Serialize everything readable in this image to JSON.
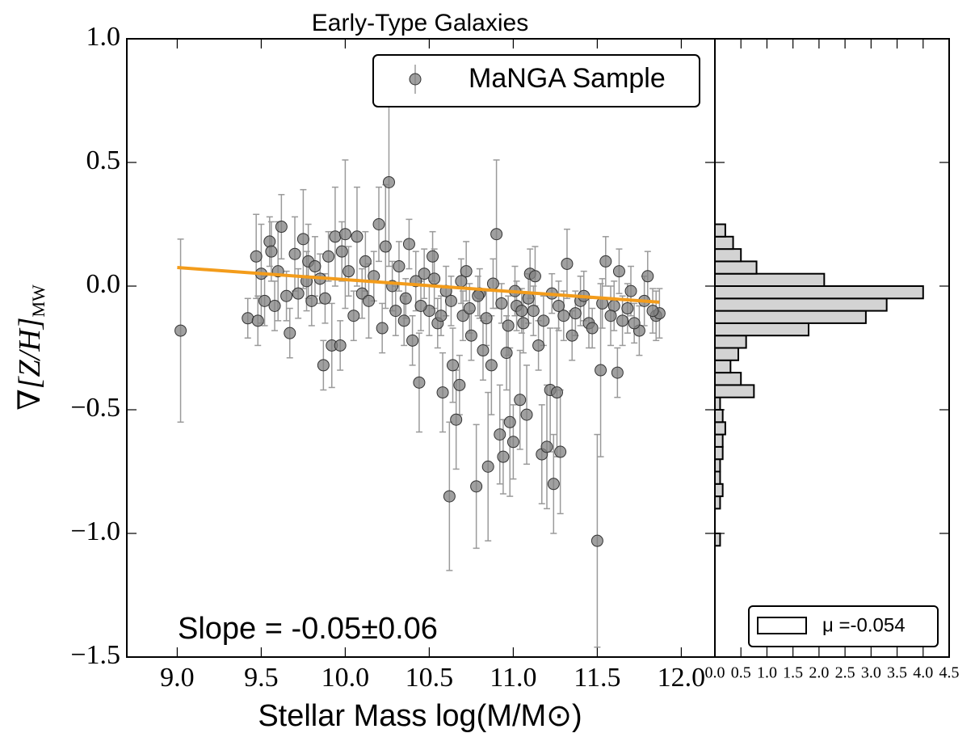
{
  "chart_data": [
    {
      "type": "scatter",
      "title": "Early-Type Galaxies",
      "xlabel": "Stellar Mass log(M/M⊙)",
      "ylabel": "∇[Z/H]",
      "ylabel_sub": "MW",
      "annotation": "Slope = -0.05±0.06",
      "annotation_color": "#e8121a",
      "xlim": [
        8.7,
        12.2
      ],
      "xticks": [
        {
          "value": 9,
          "label": "9.0"
        },
        9.5,
        {
          "value": 10,
          "label": "10.0"
        },
        10.5,
        {
          "value": 11,
          "label": "11.0"
        },
        11.5,
        {
          "value": 12,
          "label": "12.0"
        }
      ],
      "ylim": [
        -1.5,
        1.0
      ],
      "yticks": [
        {
          "value": -1.5,
          "label": "−1.5"
        },
        {
          "value": -1,
          "label": "−1.0"
        },
        {
          "value": -0.5,
          "label": "−0.5"
        },
        {
          "value": 0,
          "label": "0.0"
        },
        {
          "value": 0.5,
          "label": "0.5"
        },
        {
          "value": 1,
          "label": "1.0"
        }
      ],
      "legend": "upper right",
      "fit": {
        "x": [
          9.0,
          11.87
        ],
        "y": [
          0.075,
          -0.065
        ],
        "color": "#f39c1b"
      },
      "series": [
        {
          "name": "MaNGA Sample",
          "color": "#808080",
          "x": [
            9.02,
            9.42,
            9.47,
            9.48,
            9.5,
            9.52,
            9.55,
            9.56,
            9.58,
            9.6,
            9.62,
            9.65,
            9.67,
            9.7,
            9.72,
            9.75,
            9.77,
            9.78,
            9.8,
            9.82,
            9.85,
            9.87,
            9.88,
            9.9,
            9.92,
            9.94,
            9.97,
            9.98,
            10.0,
            10.02,
            10.05,
            10.07,
            10.1,
            10.12,
            10.14,
            10.17,
            10.2,
            10.22,
            10.24,
            10.26,
            10.28,
            10.3,
            10.32,
            10.35,
            10.38,
            10.4,
            10.42,
            10.44,
            10.47,
            10.5,
            10.52,
            10.55,
            10.58,
            10.6,
            10.62,
            10.64,
            10.66,
            10.68,
            10.7,
            10.72,
            10.75,
            10.78,
            10.8,
            10.82,
            10.85,
            10.87,
            10.9,
            10.92,
            10.94,
            10.96,
            10.98,
            11.0,
            11.02,
            11.04,
            11.06,
            11.08,
            11.1,
            11.12,
            11.15,
            11.17,
            11.2,
            11.22,
            11.24,
            11.26,
            11.28,
            11.3,
            11.35,
            11.4,
            11.45,
            11.5,
            11.52,
            11.55,
            11.6,
            11.62,
            11.65,
            11.7,
            11.75,
            11.8,
            11.85,
            11.87,
            10.36,
            10.45,
            10.53,
            10.57,
            10.63,
            10.69,
            10.74,
            10.79,
            10.84,
            10.88,
            10.93,
            10.97,
            11.01,
            11.05,
            11.09,
            11.13,
            11.18,
            11.23,
            11.27,
            11.32,
            11.37,
            11.42,
            11.47,
            11.53,
            11.58,
            11.63,
            11.68,
            11.72,
            11.78,
            11.83
          ],
          "values": [
            -0.18,
            -0.13,
            0.12,
            -0.14,
            0.05,
            -0.06,
            0.18,
            0.14,
            -0.08,
            0.06,
            0.24,
            -0.04,
            -0.19,
            0.13,
            -0.03,
            0.19,
            0.02,
            0.1,
            -0.06,
            0.08,
            0.03,
            -0.32,
            -0.05,
            0.12,
            -0.24,
            0.2,
            -0.24,
            0.14,
            0.21,
            0.06,
            -0.12,
            0.2,
            -0.03,
            0.1,
            -0.06,
            0.04,
            0.25,
            -0.17,
            0.16,
            0.42,
            0.0,
            -0.1,
            0.08,
            -0.14,
            0.17,
            -0.22,
            0.02,
            -0.39,
            0.05,
            -0.1,
            0.12,
            -0.15,
            -0.43,
            -0.02,
            -0.85,
            -0.32,
            -0.54,
            -0.4,
            -0.12,
            0.06,
            -0.2,
            -0.81,
            -0.03,
            -0.26,
            -0.73,
            -0.32,
            0.21,
            -0.6,
            -0.69,
            -0.27,
            -0.55,
            -0.63,
            -0.08,
            -0.46,
            -0.15,
            -0.52,
            0.05,
            -0.1,
            -0.24,
            -0.68,
            -0.65,
            -0.42,
            -0.8,
            -0.43,
            -0.67,
            -0.12,
            -0.2,
            -0.06,
            -0.15,
            -1.03,
            -0.34,
            0.1,
            -0.08,
            -0.35,
            -0.14,
            -0.02,
            -0.18,
            0.04,
            -0.12,
            -0.11,
            -0.05,
            -0.08,
            0.03,
            -0.12,
            -0.06,
            0.02,
            -0.09,
            -0.04,
            -0.13,
            0.01,
            -0.07,
            -0.16,
            -0.02,
            -0.1,
            -0.05,
            0.04,
            -0.14,
            -0.03,
            -0.08,
            0.09,
            -0.11,
            -0.04,
            -0.17,
            -0.07,
            -0.12,
            0.06,
            -0.09,
            -0.15,
            -0.06,
            -0.1
          ],
          "errors": [
            0.37,
            0.08,
            0.17,
            0.1,
            0.2,
            0.1,
            0.1,
            0.12,
            0.1,
            0.2,
            0.13,
            0.1,
            0.1,
            0.15,
            0.1,
            0.2,
            0.12,
            0.15,
            0.1,
            0.12,
            0.1,
            0.1,
            0.1,
            0.1,
            0.17,
            0.2,
            0.1,
            0.12,
            0.3,
            0.1,
            0.1,
            0.2,
            0.1,
            0.12,
            0.15,
            0.1,
            0.15,
            0.1,
            0.25,
            0.34,
            0.1,
            0.1,
            0.1,
            0.1,
            0.1,
            0.1,
            0.12,
            0.2,
            0.1,
            0.1,
            0.1,
            0.1,
            0.16,
            0.1,
            0.3,
            0.15,
            0.2,
            0.12,
            0.1,
            0.12,
            0.1,
            0.25,
            0.1,
            0.12,
            0.3,
            0.2,
            0.3,
            0.2,
            0.15,
            0.15,
            0.3,
            0.15,
            0.1,
            0.2,
            0.12,
            0.2,
            0.1,
            0.1,
            0.1,
            0.2,
            0.25,
            0.25,
            0.2,
            0.26,
            0.25,
            0.1,
            0.1,
            0.1,
            0.1,
            0.43,
            0.35,
            0.1,
            0.1,
            0.1,
            0.1,
            0.1,
            0.1,
            0.1,
            0.1,
            0.1,
            0.08,
            0.1,
            0.12,
            0.08,
            0.1,
            0.09,
            0.1,
            0.08,
            0.11,
            0.1,
            0.08,
            0.12,
            0.1,
            0.09,
            0.1,
            0.12,
            0.1,
            0.08,
            0.1,
            0.14,
            0.09,
            0.1,
            0.08,
            0.1,
            0.12,
            0.09,
            0.1,
            0.08,
            0.1,
            0.09
          ]
        }
      ]
    },
    {
      "type": "histogram",
      "orientation": "horizontal",
      "color": "#d3d3d3",
      "legend": "μ =-0.054",
      "legend_position": "lower right",
      "ylim": [
        -1.5,
        1.0
      ],
      "xlim": [
        0,
        4.5
      ],
      "xticks": [
        {
          "value": 0,
          "label": "0.0"
        },
        0.5,
        {
          "value": 1,
          "label": "1.0"
        },
        1.5,
        {
          "value": 2,
          "label": "2.0"
        },
        2.5,
        {
          "value": 3,
          "label": "3.0"
        },
        3.5,
        {
          "value": 4,
          "label": "4.0"
        },
        4.5
      ],
      "bins": [
        -1.05,
        -1.0,
        -0.95,
        -0.9,
        -0.85,
        -0.8,
        -0.75,
        -0.7,
        -0.65,
        -0.6,
        -0.55,
        -0.5,
        -0.45,
        -0.4,
        -0.35,
        -0.3,
        -0.25,
        -0.2,
        -0.15,
        -0.1,
        -0.05,
        0.0,
        0.05,
        0.1,
        0.15,
        0.2,
        0.25
      ],
      "counts": [
        0.1,
        0,
        0,
        0.1,
        0.15,
        0.1,
        0.1,
        0.15,
        0.15,
        0.2,
        0.15,
        0.1,
        0.75,
        0.5,
        0.3,
        0.45,
        0.6,
        1.8,
        2.9,
        3.3,
        4.0,
        2.1,
        0.8,
        0.5,
        0.35,
        0.2
      ]
    }
  ]
}
